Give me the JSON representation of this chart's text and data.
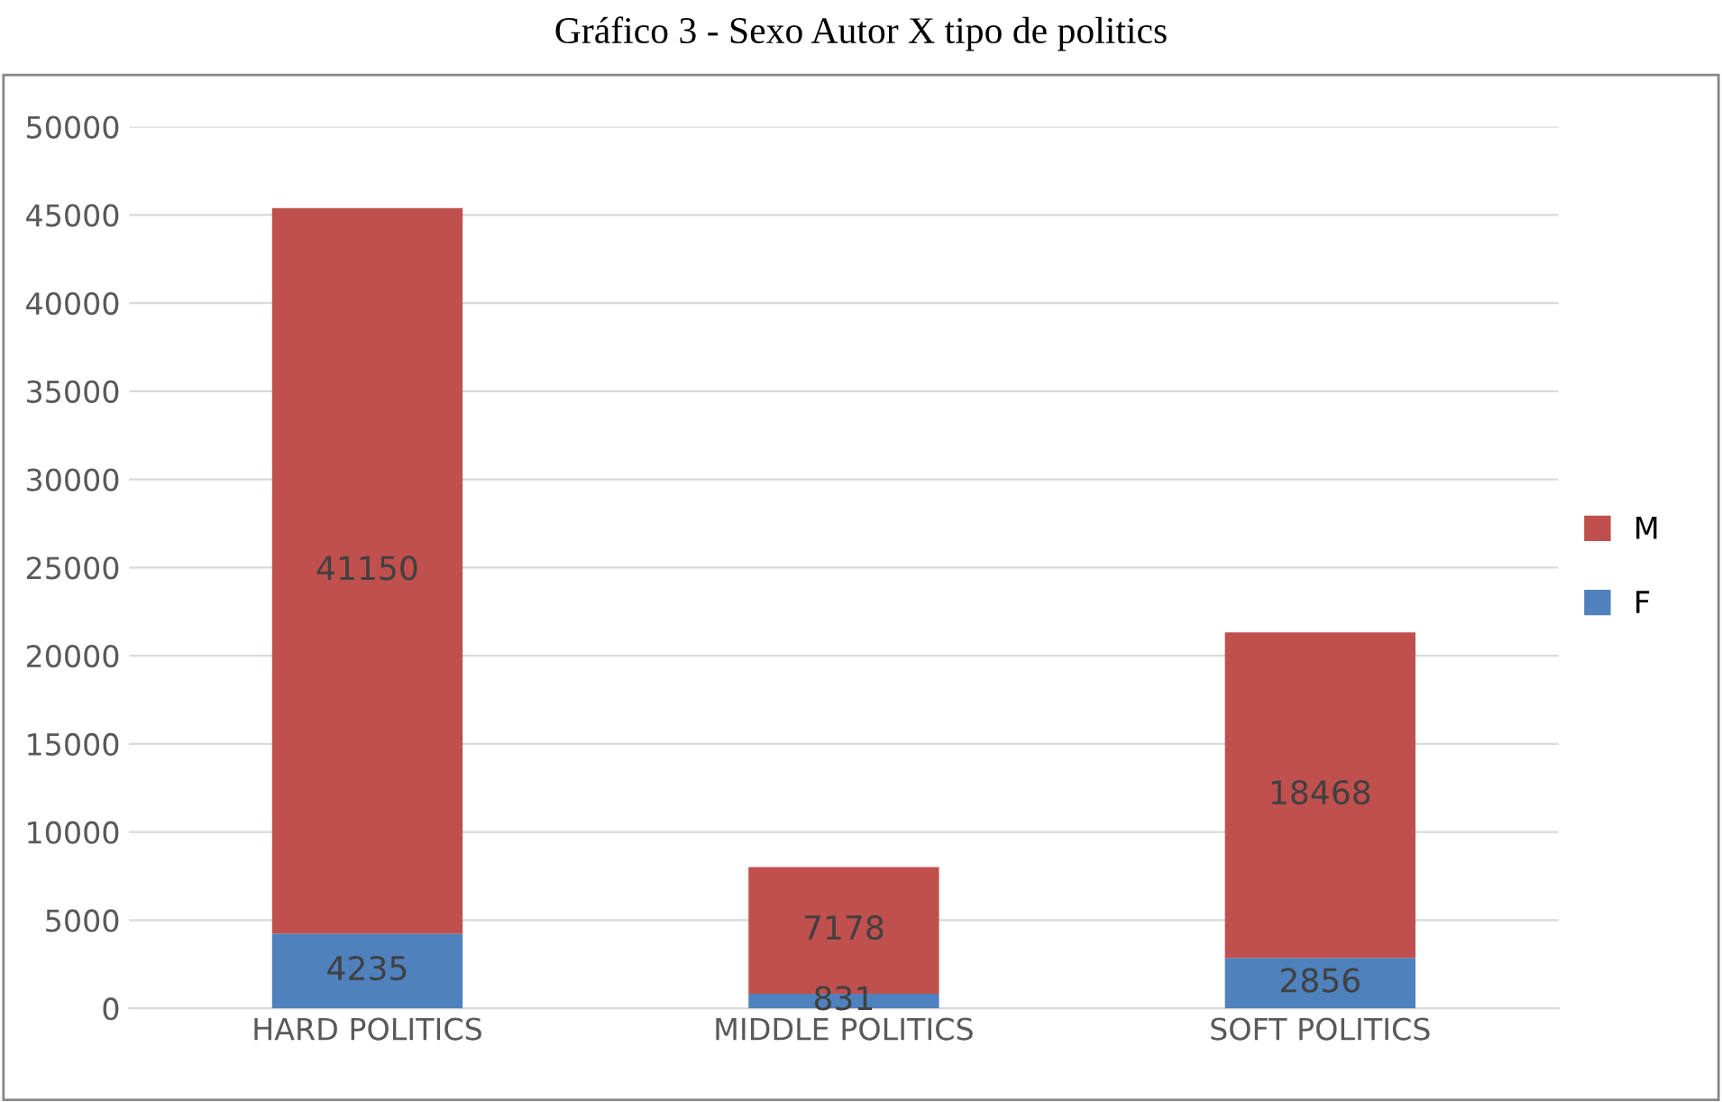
{
  "chart_data": {
    "type": "bar",
    "title": "Gráfico 3 - Sexo Autor X tipo de politics",
    "categories": [
      "HARD POLITICS",
      "MIDDLE POLITICS",
      "SOFT POLITICS"
    ],
    "stacked": true,
    "series": [
      {
        "name": "F",
        "color": "#4f81bd",
        "values": [
          4235,
          831,
          2856
        ]
      },
      {
        "name": "M",
        "color": "#c0504d",
        "values": [
          41150,
          7178,
          18468
        ]
      }
    ],
    "ylim": [
      0,
      50000
    ],
    "yticks": [
      0,
      5000,
      10000,
      15000,
      20000,
      25000,
      30000,
      35000,
      40000,
      45000,
      50000
    ],
    "grid": "y",
    "legend": "right",
    "data_labels": true
  }
}
